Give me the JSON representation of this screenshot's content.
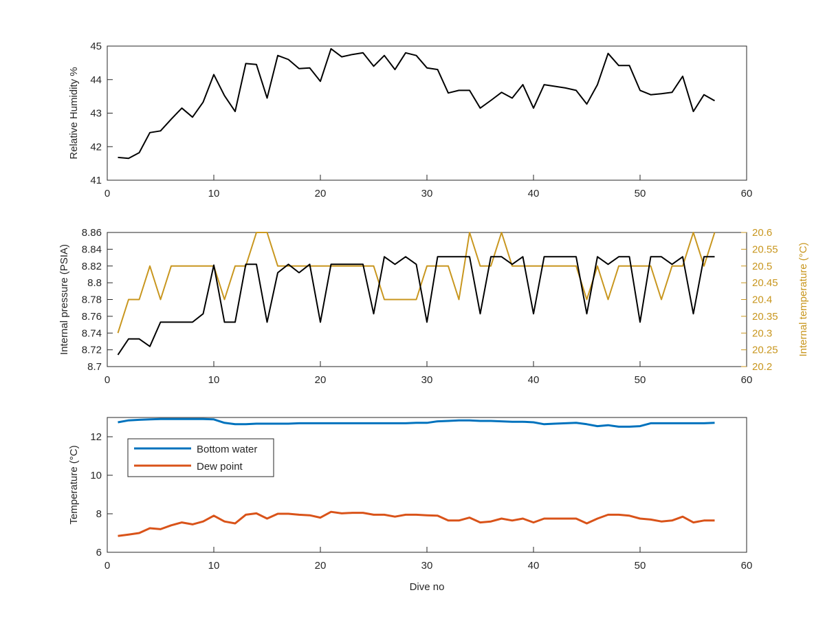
{
  "colors": {
    "black": "#000000",
    "blue": "#0072BD",
    "orange": "#D95319",
    "gold": "#C8961E",
    "axis": "#262626"
  },
  "chart_data": [
    {
      "type": "line",
      "ylabel": "Relative Humidity %",
      "xlim": [
        0,
        60
      ],
      "ylim": [
        41,
        45
      ],
      "xticks": [
        "0",
        "10",
        "20",
        "30",
        "40",
        "50",
        "60"
      ],
      "yticks": [
        "41",
        "42",
        "43",
        "44",
        "45"
      ],
      "grid": false,
      "series": [
        {
          "color": "#000000",
          "x": [
            1,
            2,
            3,
            4,
            5,
            6,
            7,
            8,
            9,
            10,
            11,
            12,
            13,
            14,
            15,
            16,
            17,
            18,
            19,
            20,
            21,
            22,
            23,
            24,
            25,
            26,
            27,
            28,
            29,
            30,
            31,
            32,
            33,
            34,
            35,
            36,
            37,
            38,
            39,
            40,
            41,
            42,
            43,
            44,
            45,
            46,
            47,
            48,
            49,
            50,
            51,
            52,
            53,
            54,
            55,
            56,
            57
          ],
          "values": [
            41.68,
            41.65,
            41.82,
            42.42,
            42.47,
            42.82,
            43.15,
            42.88,
            43.33,
            44.15,
            43.52,
            43.05,
            44.48,
            44.45,
            43.45,
            44.72,
            44.6,
            44.33,
            44.35,
            43.95,
            44.92,
            44.68,
            44.75,
            44.8,
            44.4,
            44.72,
            44.3,
            44.8,
            44.72,
            44.35,
            44.3,
            43.6,
            43.68,
            43.68,
            43.15,
            43.38,
            43.62,
            43.45,
            43.85,
            43.15,
            43.85,
            43.8,
            43.75,
            43.68,
            43.27,
            43.85,
            44.78,
            44.42,
            44.42,
            43.68,
            43.55,
            43.58,
            43.62,
            44.1,
            43.05,
            43.55,
            43.37
          ]
        }
      ]
    },
    {
      "type": "line",
      "ylabel": "Internal pressure (PSIA)",
      "ylabel_right": "Internal temperature (°C)",
      "xlim": [
        0,
        60
      ],
      "ylim": [
        8.7,
        8.86
      ],
      "ylim_right": [
        20.2,
        20.6
      ],
      "xticks": [
        "0",
        "10",
        "20",
        "30",
        "40",
        "50",
        "60"
      ],
      "yticks": [
        "8.7",
        "8.72",
        "8.74",
        "8.76",
        "8.78",
        "8.8",
        "8.82",
        "8.84",
        "8.86"
      ],
      "yticks_right": [
        "20.2",
        "20.25",
        "20.3",
        "20.35",
        "20.4",
        "20.45",
        "20.5",
        "20.55",
        "20.6"
      ],
      "grid": false,
      "series": [
        {
          "axis": "left",
          "color": "#000000",
          "x": [
            1,
            2,
            3,
            4,
            5,
            6,
            7,
            8,
            9,
            10,
            11,
            12,
            13,
            14,
            15,
            16,
            17,
            18,
            19,
            20,
            21,
            22,
            23,
            24,
            25,
            26,
            27,
            28,
            29,
            30,
            31,
            32,
            33,
            34,
            35,
            36,
            37,
            38,
            39,
            40,
            41,
            42,
            43,
            44,
            45,
            46,
            47,
            48,
            49,
            50,
            51,
            52,
            53,
            54,
            55,
            56,
            57
          ],
          "values": [
            8.714,
            8.733,
            8.733,
            8.724,
            8.753,
            8.753,
            8.753,
            8.753,
            8.763,
            8.821,
            8.753,
            8.753,
            8.822,
            8.822,
            8.753,
            8.812,
            8.822,
            8.812,
            8.822,
            8.753,
            8.822,
            8.822,
            8.822,
            8.822,
            8.763,
            8.831,
            8.822,
            8.831,
            8.822,
            8.753,
            8.831,
            8.831,
            8.831,
            8.831,
            8.763,
            8.831,
            8.831,
            8.822,
            8.831,
            8.763,
            8.831,
            8.831,
            8.831,
            8.831,
            8.763,
            8.831,
            8.822,
            8.831,
            8.831,
            8.753,
            8.831,
            8.831,
            8.822,
            8.831,
            8.763,
            8.831,
            8.831
          ]
        },
        {
          "axis": "right",
          "color": "#C8961E",
          "x": [
            1,
            2,
            3,
            4,
            5,
            6,
            7,
            8,
            9,
            10,
            11,
            12,
            13,
            14,
            15,
            16,
            17,
            18,
            19,
            20,
            21,
            22,
            23,
            24,
            25,
            26,
            27,
            28,
            29,
            30,
            31,
            32,
            33,
            34,
            35,
            36,
            37,
            38,
            39,
            40,
            41,
            42,
            43,
            44,
            45,
            46,
            47,
            48,
            49,
            50,
            51,
            52,
            53,
            54,
            55,
            56,
            57
          ],
          "values": [
            20.3,
            20.4,
            20.4,
            20.5,
            20.4,
            20.5,
            20.5,
            20.5,
            20.5,
            20.5,
            20.4,
            20.5,
            20.5,
            20.6,
            20.6,
            20.5,
            20.5,
            20.5,
            20.5,
            20.5,
            20.5,
            20.5,
            20.5,
            20.5,
            20.5,
            20.4,
            20.4,
            20.4,
            20.4,
            20.5,
            20.5,
            20.5,
            20.4,
            20.6,
            20.5,
            20.5,
            20.6,
            20.5,
            20.5,
            20.5,
            20.5,
            20.5,
            20.5,
            20.5,
            20.4,
            20.5,
            20.4,
            20.5,
            20.5,
            20.5,
            20.5,
            20.4,
            20.5,
            20.5,
            20.6,
            20.5,
            20.6
          ]
        }
      ]
    },
    {
      "type": "line",
      "xlabel": "Dive no",
      "ylabel": "Temperature (°C)",
      "xlim": [
        0,
        60
      ],
      "ylim": [
        6,
        13
      ],
      "xticks": [
        "0",
        "10",
        "20",
        "30",
        "40",
        "50",
        "60"
      ],
      "yticks": [
        "6",
        "8",
        "10",
        "12"
      ],
      "grid": false,
      "legend_position": "top-left",
      "series": [
        {
          "name": "Bottom water",
          "color": "#0072BD",
          "x": [
            1,
            2,
            3,
            4,
            5,
            6,
            7,
            8,
            9,
            10,
            11,
            12,
            13,
            14,
            15,
            16,
            17,
            18,
            19,
            20,
            21,
            22,
            23,
            24,
            25,
            26,
            27,
            28,
            29,
            30,
            31,
            32,
            33,
            34,
            35,
            36,
            37,
            38,
            39,
            40,
            41,
            42,
            43,
            44,
            45,
            46,
            47,
            48,
            49,
            50,
            51,
            52,
            53,
            54,
            55,
            56,
            57
          ],
          "values": [
            12.75,
            12.85,
            12.88,
            12.9,
            12.92,
            12.92,
            12.92,
            12.92,
            12.92,
            12.9,
            12.72,
            12.65,
            12.65,
            12.68,
            12.68,
            12.68,
            12.68,
            12.7,
            12.7,
            12.7,
            12.7,
            12.7,
            12.7,
            12.7,
            12.7,
            12.7,
            12.7,
            12.7,
            12.72,
            12.72,
            12.8,
            12.82,
            12.85,
            12.85,
            12.82,
            12.82,
            12.8,
            12.78,
            12.78,
            12.75,
            12.65,
            12.68,
            12.7,
            12.72,
            12.65,
            12.55,
            12.6,
            12.52,
            12.52,
            12.55,
            12.7,
            12.7,
            12.7,
            12.7,
            12.7,
            12.7,
            12.72
          ]
        },
        {
          "name": "Dew point",
          "color": "#D95319",
          "x": [
            1,
            2,
            3,
            4,
            5,
            6,
            7,
            8,
            9,
            10,
            11,
            12,
            13,
            14,
            15,
            16,
            17,
            18,
            19,
            20,
            21,
            22,
            23,
            24,
            25,
            26,
            27,
            28,
            29,
            30,
            31,
            32,
            33,
            34,
            35,
            36,
            37,
            38,
            39,
            40,
            41,
            42,
            43,
            44,
            45,
            46,
            47,
            48,
            49,
            50,
            51,
            52,
            53,
            54,
            55,
            56,
            57
          ],
          "values": [
            6.85,
            6.92,
            7.0,
            7.25,
            7.2,
            7.4,
            7.55,
            7.45,
            7.6,
            7.9,
            7.6,
            7.5,
            7.95,
            8.02,
            7.75,
            8.0,
            8.0,
            7.95,
            7.92,
            7.8,
            8.1,
            8.02,
            8.05,
            8.05,
            7.95,
            7.95,
            7.85,
            7.95,
            7.95,
            7.92,
            7.9,
            7.65,
            7.65,
            7.8,
            7.55,
            7.6,
            7.75,
            7.65,
            7.75,
            7.55,
            7.75,
            7.75,
            7.75,
            7.75,
            7.5,
            7.75,
            7.95,
            7.95,
            7.9,
            7.75,
            7.7,
            7.6,
            7.65,
            7.85,
            7.55,
            7.65,
            7.65
          ]
        }
      ]
    }
  ]
}
